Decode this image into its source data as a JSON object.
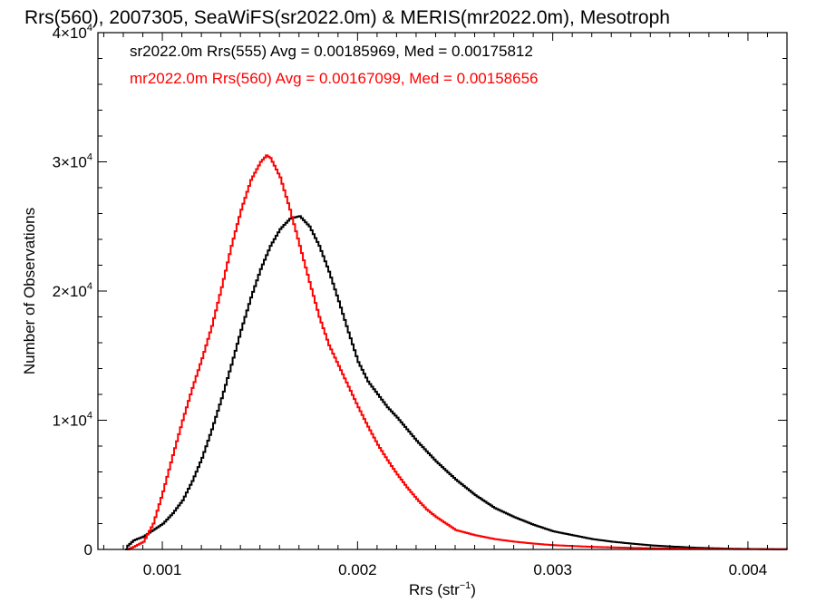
{
  "chart_data": {
    "type": "line",
    "title": "Rrs(560), 2007305, SeaWiFS(sr2022.0m) & MERIS(mr2022.0m), Mesotroph",
    "xlabel": "Rrs (str",
    "xlabel_sup": "−1",
    "xlabel_close": ")",
    "ylabel": "Number of Observations",
    "xlim": [
      0.00067,
      0.0042
    ],
    "ylim": [
      0,
      40000
    ],
    "grid": false,
    "legend_position": "top-left",
    "x_ticks": [
      {
        "value": 0.001,
        "label": "0.001"
      },
      {
        "value": 0.002,
        "label": "0.002"
      },
      {
        "value": 0.003,
        "label": "0.003"
      },
      {
        "value": 0.004,
        "label": "0.004"
      }
    ],
    "y_ticks": [
      {
        "value": 0,
        "label": "0"
      },
      {
        "value": 10000,
        "label": "1×10",
        "sup": "4"
      },
      {
        "value": 20000,
        "label": "2×10",
        "sup": "4"
      },
      {
        "value": 30000,
        "label": "3×10",
        "sup": "4"
      },
      {
        "value": 40000,
        "label": "4×10",
        "sup": "4"
      }
    ],
    "series": [
      {
        "name": "sr2022.0m Rrs(555) Avg = 0.00185969, Med = 0.00175812",
        "color": "#000000",
        "points": [
          [
            0.00081,
            0
          ],
          [
            0.00082,
            300
          ],
          [
            0.00085,
            700
          ],
          [
            0.0009,
            1000
          ],
          [
            0.00095,
            1500
          ],
          [
            0.001,
            2000
          ],
          [
            0.00105,
            2800
          ],
          [
            0.0011,
            3800
          ],
          [
            0.00115,
            5300
          ],
          [
            0.0012,
            7100
          ],
          [
            0.00125,
            9300
          ],
          [
            0.0013,
            11700
          ],
          [
            0.00135,
            14300
          ],
          [
            0.0014,
            17000
          ],
          [
            0.00145,
            19500
          ],
          [
            0.0015,
            21700
          ],
          [
            0.00155,
            23500
          ],
          [
            0.0016,
            24800
          ],
          [
            0.00165,
            25600
          ],
          [
            0.0017,
            25800
          ],
          [
            0.00175,
            25000
          ],
          [
            0.0018,
            23500
          ],
          [
            0.00185,
            21500
          ],
          [
            0.0019,
            19200
          ],
          [
            0.00195,
            16800
          ],
          [
            0.002,
            14500
          ],
          [
            0.00205,
            13000
          ],
          [
            0.0021,
            12000
          ],
          [
            0.00215,
            11000
          ],
          [
            0.0022,
            10200
          ],
          [
            0.00225,
            9300
          ],
          [
            0.0023,
            8400
          ],
          [
            0.00235,
            7600
          ],
          [
            0.0024,
            6800
          ],
          [
            0.00245,
            6100
          ],
          [
            0.0025,
            5400
          ],
          [
            0.00255,
            4800
          ],
          [
            0.0026,
            4200
          ],
          [
            0.00265,
            3700
          ],
          [
            0.0027,
            3200
          ],
          [
            0.0028,
            2500
          ],
          [
            0.0029,
            1900
          ],
          [
            0.003,
            1400
          ],
          [
            0.0031,
            1100
          ],
          [
            0.0032,
            800
          ],
          [
            0.0033,
            600
          ],
          [
            0.0034,
            450
          ],
          [
            0.0035,
            320
          ],
          [
            0.0036,
            230
          ],
          [
            0.0037,
            150
          ],
          [
            0.0038,
            100
          ],
          [
            0.0039,
            60
          ],
          [
            0.004,
            40
          ],
          [
            0.0041,
            25
          ],
          [
            0.0042,
            15
          ]
        ]
      },
      {
        "name": "mr2022.0m Rrs(560) Avg = 0.00167099, Med = 0.00158656",
        "color": "#ff0000",
        "points": [
          [
            0.00082,
            0
          ],
          [
            0.00085,
            200
          ],
          [
            0.0009,
            600
          ],
          [
            0.00095,
            2000
          ],
          [
            0.001,
            4500
          ],
          [
            0.00105,
            7300
          ],
          [
            0.0011,
            10000
          ],
          [
            0.00115,
            12500
          ],
          [
            0.0012,
            14800
          ],
          [
            0.00125,
            17300
          ],
          [
            0.0013,
            20300
          ],
          [
            0.00135,
            23500
          ],
          [
            0.0014,
            26300
          ],
          [
            0.00145,
            28600
          ],
          [
            0.0015,
            30000
          ],
          [
            0.00153,
            30500
          ],
          [
            0.00155,
            30300
          ],
          [
            0.0016,
            28800
          ],
          [
            0.00165,
            26300
          ],
          [
            0.0017,
            23500
          ],
          [
            0.00175,
            20700
          ],
          [
            0.0018,
            18000
          ],
          [
            0.00185,
            15800
          ],
          [
            0.0019,
            14200
          ],
          [
            0.00195,
            12600
          ],
          [
            0.002,
            11000
          ],
          [
            0.00205,
            9500
          ],
          [
            0.0021,
            8100
          ],
          [
            0.00215,
            6900
          ],
          [
            0.0022,
            5800
          ],
          [
            0.00225,
            4800
          ],
          [
            0.0023,
            3900
          ],
          [
            0.00235,
            3100
          ],
          [
            0.0024,
            2500
          ],
          [
            0.00245,
            2000
          ],
          [
            0.0025,
            1500
          ],
          [
            0.0026,
            1100
          ],
          [
            0.0027,
            800
          ],
          [
            0.0028,
            600
          ],
          [
            0.0029,
            450
          ],
          [
            0.003,
            330
          ],
          [
            0.0032,
            200
          ],
          [
            0.0034,
            120
          ],
          [
            0.0036,
            70
          ],
          [
            0.0038,
            40
          ],
          [
            0.004,
            25
          ],
          [
            0.0042,
            15
          ]
        ]
      }
    ]
  }
}
